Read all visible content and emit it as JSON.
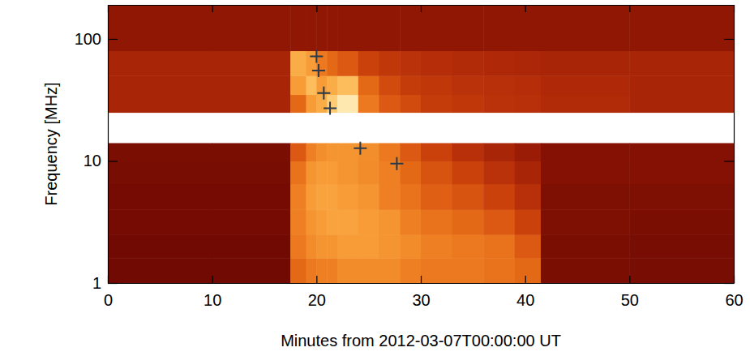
{
  "chart_data": {
    "type": "heatmap",
    "x_label": "Minutes from 2012-03-07T00:00:00 UT",
    "y_label": "Frequency [MHz]",
    "log": "y",
    "xlim": [
      0,
      60
    ],
    "xticks": [
      0,
      10,
      20,
      30,
      40,
      50,
      60
    ],
    "ylim": [
      1,
      190
    ],
    "yticks": [
      1,
      10,
      100
    ],
    "x_edges": [
      0,
      10,
      17.5,
      19,
      20,
      21,
      22,
      24,
      26,
      28,
      30,
      33,
      36,
      39,
      41.5,
      50,
      60
    ],
    "y_edges": [
      1,
      1.6,
      2.5,
      4,
      6.5,
      10,
      14,
      25,
      35,
      50,
      80,
      190
    ],
    "cell_range": [
      0,
      1
    ],
    "cells": [
      [
        0.12,
        0.12,
        0.55,
        0.6,
        0.62,
        0.62,
        0.65,
        0.65,
        0.65,
        0.62,
        0.6,
        0.6,
        0.58,
        0.55,
        0.15,
        0.14
      ],
      [
        0.12,
        0.12,
        0.6,
        0.65,
        0.68,
        0.68,
        0.7,
        0.7,
        0.68,
        0.65,
        0.62,
        0.6,
        0.58,
        0.5,
        0.15,
        0.14
      ],
      [
        0.13,
        0.13,
        0.62,
        0.68,
        0.7,
        0.72,
        0.72,
        0.7,
        0.68,
        0.62,
        0.58,
        0.55,
        0.5,
        0.42,
        0.16,
        0.15
      ],
      [
        0.13,
        0.13,
        0.62,
        0.7,
        0.72,
        0.72,
        0.7,
        0.68,
        0.62,
        0.58,
        0.52,
        0.48,
        0.42,
        0.35,
        0.16,
        0.16
      ],
      [
        0.14,
        0.14,
        0.58,
        0.68,
        0.7,
        0.7,
        0.68,
        0.65,
        0.62,
        0.55,
        0.48,
        0.42,
        0.36,
        0.3,
        0.18,
        0.18
      ],
      [
        0.15,
        0.15,
        0.5,
        0.62,
        0.66,
        0.68,
        0.68,
        0.66,
        0.6,
        0.5,
        0.42,
        0.35,
        0.3,
        0.25,
        0.18,
        0.18
      ],
      [
        null,
        null,
        null,
        null,
        null,
        null,
        null,
        null,
        null,
        null,
        null,
        null,
        null,
        null,
        null,
        null
      ],
      [
        0.3,
        0.3,
        0.55,
        0.7,
        0.75,
        0.85,
        0.95,
        0.6,
        0.5,
        0.45,
        0.4,
        0.38,
        0.36,
        0.35,
        0.33,
        0.3
      ],
      [
        0.3,
        0.3,
        0.7,
        0.8,
        0.7,
        0.75,
        0.8,
        0.55,
        0.45,
        0.4,
        0.38,
        0.36,
        0.35,
        0.34,
        0.32,
        0.3
      ],
      [
        0.3,
        0.3,
        0.75,
        0.7,
        0.6,
        0.55,
        0.5,
        0.42,
        0.38,
        0.36,
        0.34,
        0.33,
        0.32,
        0.31,
        0.3,
        0.3
      ],
      [
        0.22,
        0.22,
        0.22,
        0.22,
        0.22,
        0.22,
        0.22,
        0.22,
        0.22,
        0.22,
        0.22,
        0.22,
        0.22,
        0.22,
        0.22,
        0.22
      ]
    ],
    "series": [
      {
        "type": "scatter",
        "marker": "plus",
        "color": "#2b3a4a",
        "x": [
          20,
          20.2,
          20.7,
          21.3,
          24.2,
          27.7
        ],
        "values": [
          72,
          55,
          36,
          27,
          12.7,
          9.5
        ]
      }
    ]
  }
}
